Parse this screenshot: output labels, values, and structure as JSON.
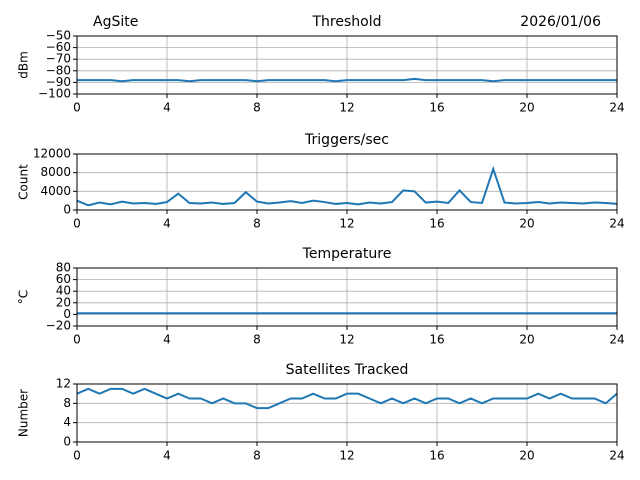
{
  "chart_data": [
    {
      "type": "line",
      "site": "AgSite",
      "title": "Threshold",
      "date": "2026/01/06",
      "ylabel": "dBm",
      "grid": true,
      "x": [
        0,
        0.5,
        1,
        1.5,
        2,
        2.5,
        3,
        3.5,
        4,
        4.5,
        5,
        5.5,
        6,
        6.5,
        7,
        7.5,
        8,
        8.5,
        9,
        9.5,
        10,
        10.5,
        11,
        11.5,
        12,
        12.5,
        13,
        13.5,
        14,
        14.5,
        15,
        15.5,
        16,
        16.5,
        17,
        17.5,
        18,
        18.5,
        19,
        19.5,
        20,
        20.5,
        21,
        21.5,
        22,
        22.5,
        23,
        23.5,
        24
      ],
      "series": [
        {
          "color": "#1f77b4",
          "values": [
            -88,
            -88,
            -88,
            -88,
            -89,
            -88,
            -88,
            -88,
            -88,
            -88,
            -89,
            -88,
            -88,
            -88,
            -88,
            -88,
            -89,
            -88,
            -88,
            -88,
            -88,
            -88,
            -88,
            -89,
            -88,
            -88,
            -88,
            -88,
            -88,
            -88,
            -87,
            -88,
            -88,
            -88,
            -88,
            -88,
            -88,
            -89,
            -88,
            -88,
            -88,
            -88,
            -88,
            -88,
            -88,
            -88,
            -88,
            -88,
            -88
          ]
        }
      ],
      "xlim": [
        0,
        24
      ],
      "xticks": [
        0,
        4,
        8,
        12,
        16,
        20,
        24
      ],
      "ylim": [
        -100,
        -50
      ],
      "yticks": [
        {
          "value": -50,
          "label": "−50"
        },
        {
          "value": -60,
          "label": "−60"
        },
        {
          "value": -70,
          "label": "−70"
        },
        {
          "value": -80,
          "label": "−80"
        },
        {
          "value": -90,
          "label": "−90"
        },
        {
          "value": -100,
          "label": "−100"
        }
      ]
    },
    {
      "type": "line",
      "title": "Triggers/sec",
      "ylabel": "Count",
      "grid": true,
      "x": [
        0,
        0.5,
        1,
        1.5,
        2,
        2.5,
        3,
        3.5,
        4,
        4.5,
        5,
        5.5,
        6,
        6.5,
        7,
        7.5,
        8,
        8.5,
        9,
        9.5,
        10,
        10.5,
        11,
        11.5,
        12,
        12.5,
        13,
        13.5,
        14,
        14.5,
        15,
        15.5,
        16,
        16.5,
        17,
        17.5,
        18,
        18.5,
        19,
        19.5,
        20,
        20.5,
        21,
        21.5,
        22,
        22.5,
        23,
        23.5,
        24
      ],
      "series": [
        {
          "color": "#1f77b4",
          "values": [
            2000,
            1000,
            1600,
            1200,
            1800,
            1400,
            1500,
            1300,
            1700,
            3500,
            1500,
            1400,
            1600,
            1300,
            1500,
            3800,
            1800,
            1400,
            1600,
            1900,
            1500,
            2000,
            1700,
            1300,
            1500,
            1200,
            1600,
            1400,
            1700,
            4200,
            4000,
            1600,
            1800,
            1500,
            4200,
            1700,
            1500,
            8800,
            1600,
            1400,
            1500,
            1700,
            1400,
            1600,
            1500,
            1400,
            1600,
            1500,
            1300
          ]
        }
      ],
      "xlim": [
        0,
        24
      ],
      "xticks": [
        0,
        4,
        8,
        12,
        16,
        20,
        24
      ],
      "ylim": [
        0,
        12000
      ],
      "yticks": [
        0,
        4000,
        8000,
        12000
      ]
    },
    {
      "type": "line",
      "title": "Temperature",
      "ylabel": "°C",
      "grid": true,
      "x": [
        0,
        0.5,
        1,
        1.5,
        2,
        2.5,
        3,
        3.5,
        4,
        4.5,
        5,
        5.5,
        6,
        6.5,
        7,
        7.5,
        8,
        8.5,
        9,
        9.5,
        10,
        10.5,
        11,
        11.5,
        12,
        12.5,
        13,
        13.5,
        14,
        14.5,
        15,
        15.5,
        16,
        16.5,
        17,
        17.5,
        18,
        18.5,
        19,
        19.5,
        20,
        20.5,
        21,
        21.5,
        22,
        22.5,
        23,
        23.5,
        24
      ],
      "series": [
        {
          "color": "#1f77b4",
          "values": [
            2,
            2,
            2,
            2,
            2,
            2,
            2,
            2,
            2,
            2,
            2,
            2,
            2,
            2,
            2,
            2,
            2,
            2,
            2,
            2,
            2,
            2,
            2,
            2,
            2,
            2,
            2,
            2,
            2,
            2,
            2,
            2,
            2,
            2,
            2,
            2,
            2,
            2,
            2,
            2,
            2,
            2,
            2,
            2,
            2,
            2,
            2,
            2,
            2
          ]
        }
      ],
      "xlim": [
        0,
        24
      ],
      "xticks": [
        0,
        4,
        8,
        12,
        16,
        20,
        24
      ],
      "ylim": [
        -20,
        80
      ],
      "yticks": [
        {
          "value": -20,
          "label": "−20"
        },
        0,
        20,
        40,
        60,
        80
      ]
    },
    {
      "type": "line",
      "title": "Satellites Tracked",
      "ylabel": "Number",
      "grid": true,
      "x": [
        0,
        0.5,
        1,
        1.5,
        2,
        2.5,
        3,
        3.5,
        4,
        4.5,
        5,
        5.5,
        6,
        6.5,
        7,
        7.5,
        8,
        8.5,
        9,
        9.5,
        10,
        10.5,
        11,
        11.5,
        12,
        12.5,
        13,
        13.5,
        14,
        14.5,
        15,
        15.5,
        16,
        16.5,
        17,
        17.5,
        18,
        18.5,
        19,
        19.5,
        20,
        20.5,
        21,
        21.5,
        22,
        22.5,
        23,
        23.5,
        24
      ],
      "series": [
        {
          "color": "#1f77b4",
          "values": [
            10,
            11,
            10,
            11,
            11,
            10,
            11,
            10,
            9,
            10,
            9,
            9,
            8,
            9,
            8,
            8,
            7,
            7,
            8,
            9,
            9,
            10,
            9,
            9,
            10,
            10,
            9,
            8,
            9,
            8,
            9,
            8,
            9,
            9,
            8,
            9,
            8,
            9,
            9,
            9,
            9,
            10,
            9,
            10,
            9,
            9,
            9,
            8,
            10
          ]
        }
      ],
      "xlim": [
        0,
        24
      ],
      "xticks": [
        0,
        4,
        8,
        12,
        16,
        20,
        24
      ],
      "ylim": [
        0,
        12
      ],
      "yticks": [
        0,
        4,
        8,
        12
      ]
    }
  ]
}
